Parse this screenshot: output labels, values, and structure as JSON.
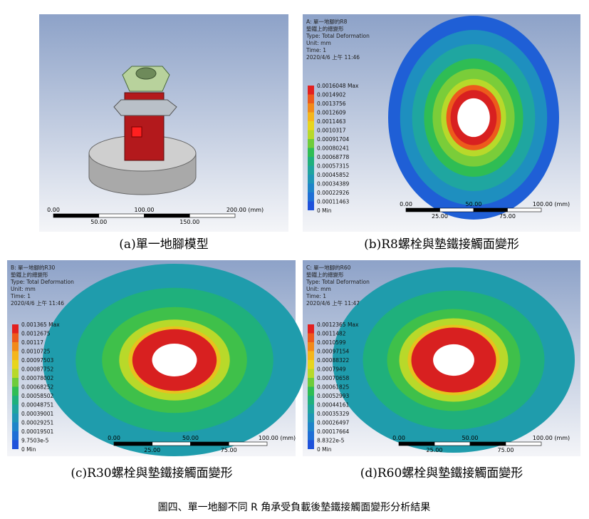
{
  "panels": [
    {
      "caption": "(a)單一地腳模型",
      "scale": {
        "top": [
          "0.00",
          "100.00",
          "200.00 (mm)"
        ],
        "bottom": [
          "50.00",
          "150.00"
        ]
      }
    },
    {
      "caption": "(b)R8螺栓與墊鐵接觸面變形",
      "header": [
        "A: 單一地腳的R8",
        "墊鐵上的總變形",
        "Type: Total Deformation",
        "Unit: mm",
        "Time: 1",
        "2020/4/6 上午 11:46"
      ],
      "legend": [
        "0.0016048 Max",
        "0.0014902",
        "0.0013756",
        "0.0012609",
        "0.0011463",
        "0.0010317",
        "0.00091704",
        "0.00080241",
        "0.00068778",
        "0.00057315",
        "0.00045852",
        "0.00034389",
        "0.00022926",
        "0.00011463",
        "0 Min"
      ],
      "scale": {
        "top": [
          "0.00",
          "50.00",
          "100.00 (mm)"
        ],
        "bottom": [
          "25.00",
          "75.00"
        ]
      }
    },
    {
      "caption": "(c)R30螺栓與墊鐵接觸面變形",
      "header": [
        "B: 單一地腳的R30",
        "墊鐵上的總變形",
        "Type: Total Deformation",
        "Unit: mm",
        "Time: 1",
        "2020/4/6 上午 11:46"
      ],
      "legend": [
        "0.001365 Max",
        "0.0012675",
        "0.00117",
        "0.0010725",
        "0.00097503",
        "0.00087752",
        "0.00078002",
        "0.00068252",
        "0.00058502",
        "0.00048751",
        "0.00039001",
        "0.00029251",
        "0.00019501",
        "9.7503e-5",
        "0 Min"
      ],
      "scale": {
        "top": [
          "0.00",
          "50.00",
          "100.00 (mm)"
        ],
        "bottom": [
          "25.00",
          "75.00"
        ]
      }
    },
    {
      "caption": "(d)R60螺栓與墊鐵接觸面變形",
      "header": [
        "C: 單一地腳的R60",
        "墊鐵上的總變形",
        "Type: Total Deformation",
        "Unit: mm",
        "Time: 1",
        "2020/4/6 上午 11:47"
      ],
      "legend": [
        "0.0012365 Max",
        "0.0011482",
        "0.0010599",
        "0.00097154",
        "0.00088322",
        "0.0007949",
        "0.00070658",
        "0.00061825",
        "0.00052993",
        "0.00044161",
        "0.00035329",
        "0.00026497",
        "0.00017664",
        "8.8322e-5",
        "0 Min"
      ],
      "scale": {
        "top": [
          "0.00",
          "50.00",
          "100.00 (mm)"
        ],
        "bottom": [
          "25.00",
          "75.00"
        ]
      }
    }
  ],
  "figure_caption": "圖四、單一地腳不同 R 角承受負載後墊鐵接觸面變形分析結果"
}
